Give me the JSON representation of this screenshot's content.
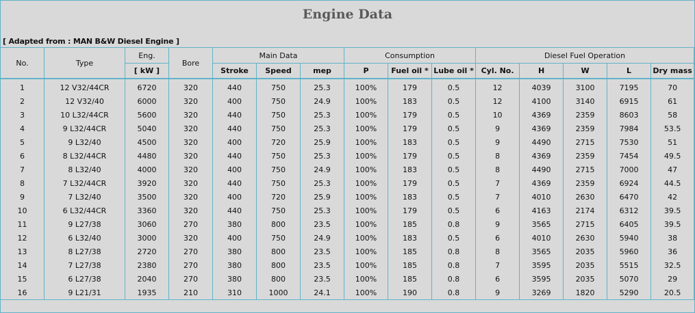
{
  "title": "Engine Data",
  "source": "[ Adapted from : MAN B&W Diesel Engine ]",
  "headers": {
    "no": "No.",
    "type": "Type",
    "eng_top": "Eng.",
    "eng_unit": "[ kW ]",
    "bore": "Bore",
    "main_data": "Main Data",
    "consumption": "Consumption",
    "diesel_fuel": "Diesel Fuel Operation",
    "stroke": "Stroke",
    "speed": "Speed",
    "mep": "mep",
    "p": "P",
    "fuel_oil": "Fuel oil *",
    "lube_oil": "Lube oil *",
    "cyl_no": "Cyl. No.",
    "h": "H",
    "w": "W",
    "l": "L",
    "dry_mass": "Dry mass"
  },
  "rows": [
    [
      "1",
      "12 V32/44CR",
      "6720",
      "320",
      "440",
      "750",
      "25.3",
      "100%",
      "179",
      "0.5",
      "12",
      "4039",
      "3100",
      "7195",
      "70"
    ],
    [
      "2",
      "12 V32/40",
      "6000",
      "320",
      "400",
      "750",
      "24.9",
      "100%",
      "183",
      "0.5",
      "12",
      "4100",
      "3140",
      "6915",
      "61"
    ],
    [
      "3",
      "10 L32/44CR",
      "5600",
      "320",
      "440",
      "750",
      "25.3",
      "100%",
      "179",
      "0.5",
      "10",
      "4369",
      "2359",
      "8603",
      "58"
    ],
    [
      "4",
      "9 L32/44CR",
      "5040",
      "320",
      "440",
      "750",
      "25.3",
      "100%",
      "179",
      "0.5",
      "9",
      "4369",
      "2359",
      "7984",
      "53.5"
    ],
    [
      "5",
      "9 L32/40",
      "4500",
      "320",
      "400",
      "720",
      "25.9",
      "100%",
      "183",
      "0.5",
      "9",
      "4490",
      "2715",
      "7530",
      "51"
    ],
    [
      "6",
      "8 L32/44CR",
      "4480",
      "320",
      "440",
      "750",
      "25.3",
      "100%",
      "179",
      "0.5",
      "8",
      "4369",
      "2359",
      "7454",
      "49.5"
    ],
    [
      "7",
      "8 L32/40",
      "4000",
      "320",
      "400",
      "750",
      "24.9",
      "100%",
      "183",
      "0.5",
      "8",
      "4490",
      "2715",
      "7000",
      "47"
    ],
    [
      "8",
      "7 L32/44CR",
      "3920",
      "320",
      "440",
      "750",
      "25.3",
      "100%",
      "179",
      "0.5",
      "7",
      "4369",
      "2359",
      "6924",
      "44.5"
    ],
    [
      "9",
      "7 L32/40",
      "3500",
      "320",
      "400",
      "720",
      "25.9",
      "100%",
      "183",
      "0.5",
      "7",
      "4010",
      "2630",
      "6470",
      "42"
    ],
    [
      "10",
      "6 L32/44CR",
      "3360",
      "320",
      "440",
      "750",
      "25.3",
      "100%",
      "179",
      "0.5",
      "6",
      "4163",
      "2174",
      "6312",
      "39.5"
    ],
    [
      "11",
      "9 L27/38",
      "3060",
      "270",
      "380",
      "800",
      "23.5",
      "100%",
      "185",
      "0.8",
      "9",
      "3565",
      "2715",
      "6405",
      "39.5"
    ],
    [
      "12",
      "6 L32/40",
      "3000",
      "320",
      "400",
      "750",
      "24.9",
      "100%",
      "183",
      "0.5",
      "6",
      "4010",
      "2630",
      "5940",
      "38"
    ],
    [
      "13",
      "8 L27/38",
      "2720",
      "270",
      "380",
      "800",
      "23.5",
      "100%",
      "185",
      "0.8",
      "8",
      "3565",
      "2035",
      "5960",
      "36"
    ],
    [
      "14",
      "7 L27/38",
      "2380",
      "270",
      "380",
      "800",
      "23.5",
      "100%",
      "185",
      "0.8",
      "7",
      "3595",
      "2035",
      "5515",
      "32.5"
    ],
    [
      "15",
      "6 L27/38",
      "2040",
      "270",
      "380",
      "800",
      "23.5",
      "100%",
      "185",
      "0.8",
      "6",
      "3595",
      "2035",
      "5070",
      "29"
    ],
    [
      "16",
      "9 L21/31",
      "1935",
      "210",
      "310",
      "1000",
      "24.1",
      "100%",
      "190",
      "0.8",
      "9",
      "3269",
      "1820",
      "5290",
      "20.5"
    ]
  ]
}
